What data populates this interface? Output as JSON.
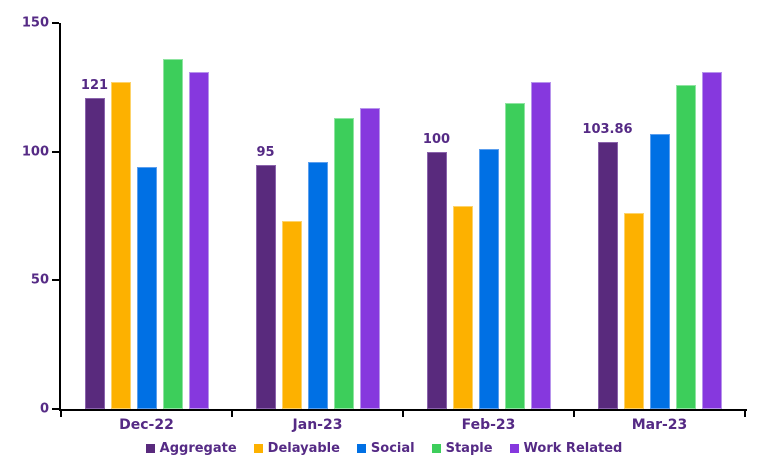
{
  "chart_data": {
    "type": "bar",
    "title": "",
    "xlabel": "",
    "ylabel": "",
    "categories": [
      "Dec-22",
      "Jan-23",
      "Feb-23",
      "Mar-23"
    ],
    "series": [
      {
        "name": "Aggregate",
        "values": [
          121,
          95,
          100,
          103.86
        ],
        "color": "#592A7D",
        "border": "#8A63AC"
      },
      {
        "name": "Delayable",
        "values": [
          127,
          73,
          79,
          76
        ],
        "color": "#FDB100",
        "border": "#FDD36B"
      },
      {
        "name": "Social",
        "values": [
          94,
          96,
          101,
          107
        ],
        "color": "#0070E4",
        "border": "#5C9FEE"
      },
      {
        "name": "Staple",
        "values": [
          136,
          113,
          119,
          126
        ],
        "color": "#3DCE5B",
        "border": "#8FE4A1"
      },
      {
        "name": "Work Related",
        "values": [
          131,
          117,
          127,
          131
        ],
        "color": "#8638DE",
        "border": "#B794EC"
      }
    ],
    "data_labels": {
      "series": "Aggregate",
      "texts": [
        "121",
        "95",
        "100",
        "103.86"
      ]
    },
    "ylim": [
      0,
      150
    ],
    "yticks": [
      0,
      50,
      100,
      150
    ],
    "grid": false,
    "legend_position": "bottom",
    "text_color": "#552A85",
    "axis_color": "#000000"
  }
}
